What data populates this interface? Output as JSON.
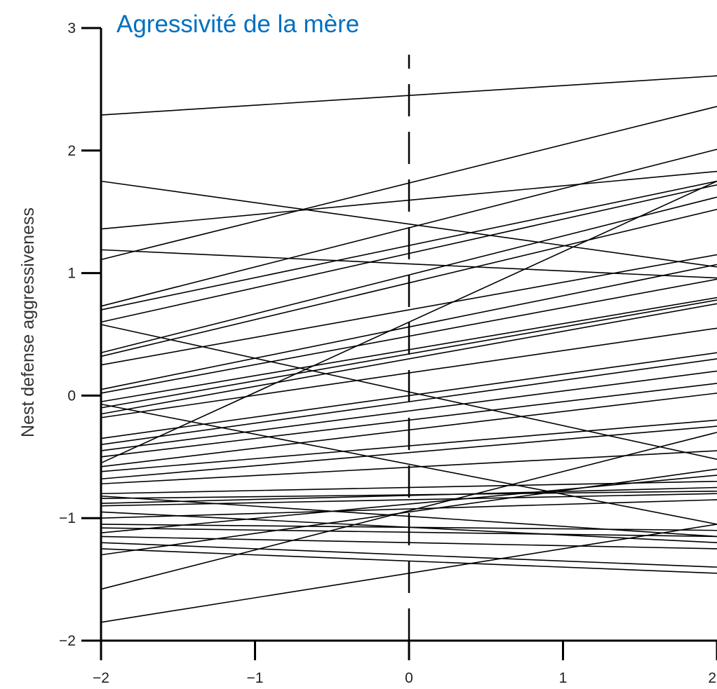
{
  "chart_data": {
    "type": "line",
    "title": "Agressivité de la mère",
    "title_color": "#0070C0",
    "xlabel": "",
    "ylabel": "Nest defense aggressiveness",
    "xlim": [
      -2,
      2
    ],
    "ylim": [
      -2,
      3
    ],
    "x_ticks": [
      -2,
      -1,
      0,
      1,
      2
    ],
    "x_tick_labels": [
      "−2",
      "−1",
      "0",
      "1",
      "2"
    ],
    "y_ticks": [
      -2,
      -1,
      0,
      1,
      2,
      3
    ],
    "y_tick_labels": [
      "−2",
      "−1",
      "0",
      "1",
      "2",
      "3"
    ],
    "reference_line": {
      "x": 0,
      "style": "dashed"
    },
    "line_color": "#000000",
    "grid": false,
    "series": [
      {
        "values": [
          2.29,
          2.61
        ]
      },
      {
        "values": [
          1.11,
          2.36
        ]
      },
      {
        "values": [
          1.36,
          1.83
        ]
      },
      {
        "values": [
          1.75,
          1.05
        ]
      },
      {
        "values": [
          1.19,
          0.96
        ]
      },
      {
        "values": [
          0.73,
          2.01
        ]
      },
      {
        "values": [
          0.7,
          1.75
        ]
      },
      {
        "values": [
          0.6,
          1.72
        ]
      },
      {
        "values": [
          0.58,
          -0.52
        ]
      },
      {
        "values": [
          0.35,
          1.62
        ]
      },
      {
        "values": [
          0.32,
          1.52
        ]
      },
      {
        "values": [
          0.25,
          1.15
        ]
      },
      {
        "values": [
          0.05,
          1.07
        ]
      },
      {
        "values": [
          0.02,
          0.95
        ]
      },
      {
        "values": [
          -0.05,
          0.8
        ]
      },
      {
        "values": [
          -0.1,
          0.78
        ]
      },
      {
        "values": [
          -0.15,
          0.75
        ]
      },
      {
        "values": [
          -0.07,
          -1.05
        ]
      },
      {
        "values": [
          -0.18,
          0.55
        ]
      },
      {
        "values": [
          -0.35,
          0.35
        ]
      },
      {
        "values": [
          -0.4,
          0.3
        ]
      },
      {
        "values": [
          -0.45,
          0.2
        ]
      },
      {
        "values": [
          -0.5,
          0.1
        ]
      },
      {
        "values": [
          -0.55,
          1.75
        ]
      },
      {
        "values": [
          -0.58,
          0.02
        ]
      },
      {
        "values": [
          -0.62,
          -0.2
        ]
      },
      {
        "values": [
          -0.68,
          -0.25
        ]
      },
      {
        "values": [
          -0.72,
          -0.45
        ]
      },
      {
        "values": [
          -0.8,
          -0.7
        ]
      },
      {
        "values": [
          -0.82,
          -1.15
        ]
      },
      {
        "values": [
          -0.84,
          -0.78
        ]
      },
      {
        "values": [
          -0.88,
          -0.75
        ]
      },
      {
        "values": [
          -0.9,
          -0.8
        ]
      },
      {
        "values": [
          -0.95,
          -1.2
        ]
      },
      {
        "values": [
          -1.0,
          -0.85
        ]
      },
      {
        "values": [
          -1.05,
          -1.1
        ]
      },
      {
        "values": [
          -1.08,
          -1.15
        ]
      },
      {
        "values": [
          -1.12,
          -0.65
        ]
      },
      {
        "values": [
          -1.15,
          -1.25
        ]
      },
      {
        "values": [
          -1.2,
          -1.4
        ]
      },
      {
        "values": [
          -1.25,
          -1.45
        ]
      },
      {
        "values": [
          -1.3,
          -0.6
        ]
      },
      {
        "values": [
          -1.58,
          -0.3
        ]
      },
      {
        "values": [
          -1.85,
          -1.05
        ]
      }
    ]
  }
}
